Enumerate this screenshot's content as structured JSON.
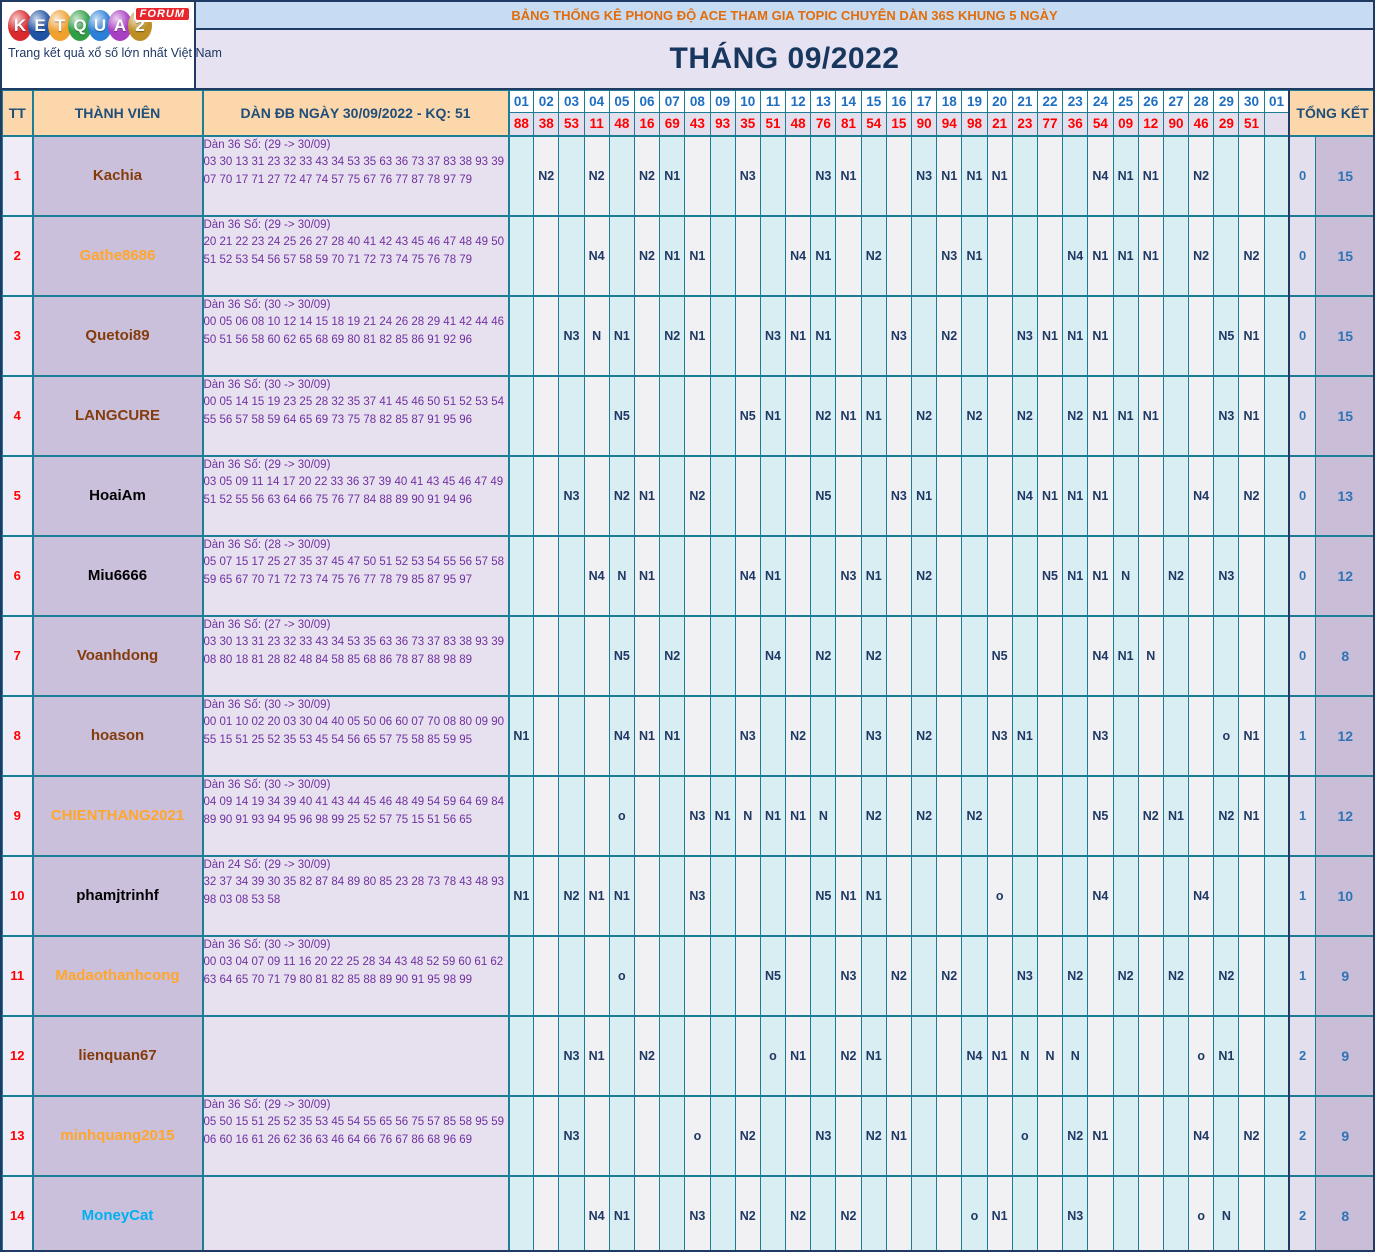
{
  "logo": {
    "brand_letters": [
      {
        "ch": "K",
        "color": "#d92b2f"
      },
      {
        "ch": "E",
        "color": "#2053a4"
      },
      {
        "ch": "T",
        "color": "#efa02f"
      },
      {
        "ch": "Q",
        "color": "#2f9e44"
      },
      {
        "ch": "U",
        "color": "#2c7fd6"
      },
      {
        "ch": "A",
        "color": "#a93fc2"
      },
      {
        "ch": "2",
        "color": "#bd8e24"
      }
    ],
    "forum_label": "FORUM",
    "tagline": "Trang kết quả xổ số lớn nhất Việt Nam"
  },
  "header": {
    "topic_title": "BẢNG THỐNG KÊ PHONG ĐỘ ACE THAM GIA TOPIC CHUYÊN DÀN 36S KHUNG 5 NGÀY",
    "month_title": "THÁNG 09/2022"
  },
  "table": {
    "col_tt": "TT",
    "col_member": "THÀNH VIÊN",
    "col_dan": "DÀN ĐB NGÀY 30/09/2022 - KQ: 51",
    "col_total": "TỔNG KẾT",
    "days": [
      "01",
      "02",
      "03",
      "04",
      "05",
      "06",
      "07",
      "08",
      "09",
      "10",
      "11",
      "12",
      "13",
      "14",
      "15",
      "16",
      "17",
      "18",
      "19",
      "20",
      "21",
      "22",
      "23",
      "24",
      "25",
      "26",
      "27",
      "28",
      "29",
      "30",
      "01"
    ],
    "results": [
      "88",
      "38",
      "53",
      "11",
      "48",
      "16",
      "69",
      "43",
      "93",
      "35",
      "51",
      "48",
      "76",
      "81",
      "54",
      "15",
      "90",
      "94",
      "98",
      "21",
      "23",
      "77",
      "36",
      "54",
      "09",
      "12",
      "90",
      "46",
      "29",
      "51",
      ""
    ],
    "rows": [
      {
        "tt": "1",
        "member": "Kachia",
        "member_color": "#843c0c",
        "dan_title": "Dàn 36 Số: (29 -> 30/09)",
        "dan_numbers": "03 30 13 31 23 32 33 43 34 53 35 63 36 73 37 83 38 93 39 07 70 17 71 27 72 47 74 57 75 67 76 77 87 78 97 79",
        "cells": [
          "",
          "N2",
          "",
          "N2",
          "",
          "N2",
          "N1",
          "",
          "",
          "N3",
          "",
          "",
          "N3",
          "N1",
          "",
          "",
          "N3",
          "N1",
          "N1",
          "N1",
          "",
          "",
          "",
          "N4",
          "N1",
          "N1",
          "",
          "N2",
          "",
          "",
          ""
        ],
        "total_miss": "0",
        "total_hit": "15"
      },
      {
        "tt": "2",
        "member": "Gathe8686",
        "member_color": "#ffa62b",
        "dan_title": "Dàn 36 Số: (29 -> 30/09)",
        "dan_numbers": "20 21 22 23 24 25 26 27 28 40 41 42 43 45 46 47 48 49 50 51 52 53 54 56 57 58 59 70 71 72 73 74 75 76 78 79",
        "cells": [
          "",
          "",
          "",
          "N4",
          "",
          "N2",
          "N1",
          "N1",
          "",
          "",
          "",
          "N4",
          "N1",
          "",
          "N2",
          "",
          "",
          "N3",
          "N1",
          "",
          "",
          "",
          "N4",
          "N1",
          "N1",
          "N1",
          "",
          "N2",
          "",
          "N2",
          ""
        ],
        "total_miss": "0",
        "total_hit": "15"
      },
      {
        "tt": "3",
        "member": "Quetoi89",
        "member_color": "#843c0c",
        "dan_title": "Dàn 36 Số: (30 -> 30/09)",
        "dan_numbers": "00 05 06 08 10 12 14 15 18 19 21 24 26 28 29 41 42 44 46 50 51 56 58 60 62 65 68 69 80 81 82 85 86 91 92 96",
        "cells": [
          "",
          "",
          "N3",
          "N",
          "N1",
          "",
          "N2",
          "N1",
          "",
          "",
          "N3",
          "N1",
          "N1",
          "",
          "",
          "N3",
          "",
          "N2",
          "",
          "",
          "N3",
          "N1",
          "N1",
          "N1",
          "",
          "",
          "",
          "",
          "N5",
          "N1",
          ""
        ],
        "total_miss": "0",
        "total_hit": "15"
      },
      {
        "tt": "4",
        "member": "LANGCURE",
        "member_color": "#843c0c",
        "dan_title": "Dàn 36 Số: (30 -> 30/09)",
        "dan_numbers": "00 05 14 15 19 23 25 28 32 35 37 41 45 46 50 51 52 53 54 55 56 57 58 59 64 65 69 73 75 78 82 85 87 91 95 96",
        "cells": [
          "",
          "",
          "",
          "",
          "N5",
          "",
          "",
          "",
          "",
          "N5",
          "N1",
          "",
          "N2",
          "N1",
          "N1",
          "",
          "N2",
          "",
          "N2",
          "",
          "N2",
          "",
          "N2",
          "N1",
          "N1",
          "N1",
          "",
          "",
          "N3",
          "N1",
          ""
        ],
        "total_miss": "0",
        "total_hit": "15"
      },
      {
        "tt": "5",
        "member": "HoaiAm",
        "member_color": "#000000",
        "dan_title": "Dàn 36 Số: (29 -> 30/09)",
        "dan_numbers": "03 05 09 11 14 17 20 22 33 36 37 39 40 41 43 45 46 47 49 51 52 55 56 63 64 66 75 76 77 84 88 89 90 91 94 96",
        "cells": [
          "",
          "",
          "N3",
          "",
          "N2",
          "N1",
          "",
          "N2",
          "",
          "",
          "",
          "",
          "N5",
          "",
          "",
          "N3",
          "N1",
          "",
          "",
          "",
          "N4",
          "N1",
          "N1",
          "N1",
          "",
          "",
          "",
          "N4",
          "",
          "N2",
          ""
        ],
        "total_miss": "0",
        "total_hit": "13"
      },
      {
        "tt": "6",
        "member": "Miu6666",
        "member_color": "#000000",
        "dan_title": "Dàn 36 Số: (28 -> 30/09)",
        "dan_numbers": "05 07 15 17 25 27 35 37 45 47 50 51 52 53 54 55 56 57 58 59 65 67 70 71 72 73 74 75 76 77 78 79 85 87 95 97",
        "cells": [
          "",
          "",
          "",
          "N4",
          "N",
          "N1",
          "",
          "",
          "",
          "N4",
          "N1",
          "",
          "",
          "N3",
          "N1",
          "",
          "N2",
          "",
          "",
          "",
          "",
          "N5",
          "N1",
          "N1",
          "N",
          "",
          "N2",
          "",
          "N3",
          "",
          ""
        ],
        "total_miss": "0",
        "total_hit": "12"
      },
      {
        "tt": "7",
        "member": "Voanhdong",
        "member_color": "#843c0c",
        "dan_title": "Dàn 36 Số: (27 -> 30/09)",
        "dan_numbers": "03 30 13 31 23 32 33 43 34 53 35 63 36 73 37 83 38 93 39 08 80 18 81 28 82 48 84 58 85 68 86 78 87 88 98 89",
        "cells": [
          "",
          "",
          "",
          "",
          "N5",
          "",
          "N2",
          "",
          "",
          "",
          "N4",
          "",
          "N2",
          "",
          "N2",
          "",
          "",
          "",
          "",
          "N5",
          "",
          "",
          "",
          "N4",
          "N1",
          "N",
          "",
          "",
          "",
          "",
          ""
        ],
        "total_miss": "0",
        "total_hit": "8"
      },
      {
        "tt": "8",
        "member": "hoason",
        "member_color": "#843c0c",
        "dan_title": "Dàn 36 Số: (30 -> 30/09)",
        "dan_numbers": "00 01 10 02 20 03 30 04 40 05 50 06 60 07 70 08 80 09 90 55 15 51 25 52 35 53 45 54 56 65 57 75 58 85 59 95",
        "cells": [
          "N1",
          "",
          "",
          "",
          "N4",
          "N1",
          "N1",
          "",
          "",
          "N3",
          "",
          "N2",
          "",
          "",
          "N3",
          "",
          "N2",
          "",
          "",
          "N3",
          "N1",
          "",
          "",
          "N3",
          "",
          "",
          "",
          "",
          "o",
          "N1",
          ""
        ],
        "total_miss": "1",
        "total_hit": "12"
      },
      {
        "tt": "9",
        "member": "CHIENTHANG2021",
        "member_color": "#ffa62b",
        "dan_title": "Dàn 36 Số: (30 -> 30/09)",
        "dan_numbers": "04 09 14 19 34 39 40 41 43 44 45 46 48 49 54 59 64 69 84 89 90 91 93 94 95 96 98 99 25 52 57 75 15 51 56 65",
        "cells": [
          "",
          "",
          "",
          "",
          "o",
          "",
          "",
          "N3",
          "N1",
          "N",
          "N1",
          "N1",
          "N",
          "",
          "N2",
          "",
          "N2",
          "",
          "N2",
          "",
          "",
          "",
          "",
          "N5",
          "",
          "N2",
          "N1",
          "",
          "N2",
          "N1",
          ""
        ],
        "total_miss": "1",
        "total_hit": "12"
      },
      {
        "tt": "10",
        "member": "phamjtrinhf",
        "member_color": "#000000",
        "dan_title": "Dàn 24 Số: (29 -> 30/09)",
        "dan_numbers": "32 37 34 39 30 35 82 87 84 89 80 85 23 28 73 78 43 48 93 98 03 08 53 58",
        "cells": [
          "N1",
          "",
          "N2",
          "N1",
          "N1",
          "",
          "",
          "N3",
          "",
          "",
          "",
          "",
          "N5",
          "N1",
          "N1",
          "",
          "",
          "",
          "",
          "o",
          "",
          "",
          "",
          "N4",
          "",
          "",
          "",
          "N4",
          "",
          "",
          ""
        ],
        "total_miss": "1",
        "total_hit": "10"
      },
      {
        "tt": "11",
        "member": "Madaothanhcong",
        "member_color": "#ffa62b",
        "dan_title": "Dàn 36 Số: (30 -> 30/09)",
        "dan_numbers": "00 03 04 07 09 11 16 20 22 25 28 34 43 48 52 59 60 61 62 63 64 65 70 71 79 80 81 82 85 88 89 90 91 95 98 99",
        "cells": [
          "",
          "",
          "",
          "",
          "o",
          "",
          "",
          "",
          "",
          "",
          "N5",
          "",
          "",
          "N3",
          "",
          "N2",
          "",
          "N2",
          "",
          "",
          "N3",
          "",
          "N2",
          "",
          "N2",
          "",
          "N2",
          "",
          "N2",
          "",
          ""
        ],
        "total_miss": "1",
        "total_hit": "9"
      },
      {
        "tt": "12",
        "member": "lienquan67",
        "member_color": "#843c0c",
        "dan_title": "",
        "dan_numbers": "",
        "cells": [
          "",
          "",
          "N3",
          "N1",
          "",
          "N2",
          "",
          "",
          "",
          "",
          "o",
          "N1",
          "",
          "N2",
          "N1",
          "",
          "",
          "",
          "N4",
          "N1",
          "N",
          "N",
          "N",
          "",
          "",
          "",
          "",
          "o",
          "N1",
          "",
          ""
        ],
        "total_miss": "2",
        "total_hit": "9"
      },
      {
        "tt": "13",
        "member": "minhquang2015",
        "member_color": "#ffa62b",
        "dan_title": "Dàn 36 Số: (29 -> 30/09)",
        "dan_numbers": "05 50 15 51 25 52 35 53 45 54 55 65 56 75 57 85 58 95 59 06 60 16 61 26 62 36 63 46 64 66 76 67 86 68 96 69",
        "cells": [
          "",
          "",
          "N3",
          "",
          "",
          "",
          "",
          "o",
          "",
          "N2",
          "",
          "",
          "N3",
          "",
          "N2",
          "N1",
          "",
          "",
          "",
          "",
          "o",
          "",
          "N2",
          "N1",
          "",
          "",
          "",
          "N4",
          "",
          "N2",
          ""
        ],
        "total_miss": "2",
        "total_hit": "9"
      },
      {
        "tt": "14",
        "member": "MoneyCat",
        "member_color": "#00b0f0",
        "dan_title": "",
        "dan_numbers": "",
        "cells": [
          "",
          "",
          "",
          "N4",
          "N1",
          "",
          "",
          "N3",
          "",
          "N2",
          "",
          "N2",
          "",
          "N2",
          "",
          "",
          "",
          "",
          "o",
          "N1",
          "",
          "",
          "N3",
          "",
          "",
          "",
          "",
          "o",
          "N",
          "",
          ""
        ],
        "total_miss": "2",
        "total_hit": "8"
      }
    ]
  }
}
